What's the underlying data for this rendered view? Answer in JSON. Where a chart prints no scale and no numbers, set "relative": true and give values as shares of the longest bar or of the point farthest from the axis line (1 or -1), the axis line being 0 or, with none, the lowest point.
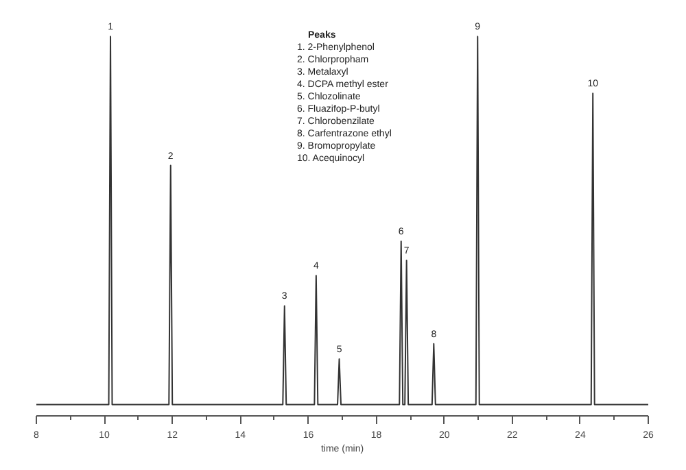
{
  "chart_data": {
    "type": "line",
    "relative": true,
    "xlabel": "time (min)",
    "xlim": [
      8,
      26
    ],
    "xticks": [
      8,
      10,
      12,
      14,
      16,
      18,
      20,
      22,
      24,
      26
    ],
    "grid": false,
    "marker": "none",
    "line_style": "solid",
    "series": [
      {
        "color": "#333333",
        "x": [
          8,
          10.13,
          10.18,
          10.23,
          11.9,
          11.95,
          12.0,
          15.25,
          15.3,
          15.35,
          16.18,
          16.23,
          16.28,
          16.86,
          16.91,
          16.96,
          18.68,
          18.73,
          18.78,
          18.84,
          18.89,
          18.94,
          19.64,
          19.69,
          19.74,
          20.93,
          20.98,
          21.03,
          24.32,
          24.37,
          24.42,
          26
        ],
        "values": [
          0.03,
          0.03,
          1.0,
          0.03,
          0.03,
          0.66,
          0.03,
          0.03,
          0.29,
          0.03,
          0.03,
          0.37,
          0.03,
          0.03,
          0.15,
          0.03,
          0.03,
          0.46,
          0.03,
          0.03,
          0.41,
          0.03,
          0.03,
          0.19,
          0.03,
          0.03,
          1.0,
          0.03,
          0.03,
          0.85,
          0.03,
          0.03
        ]
      }
    ],
    "annotations": [
      {
        "text": "1",
        "x": 10.18,
        "y": 1.0
      },
      {
        "text": "2",
        "x": 11.95,
        "y": 0.66
      },
      {
        "text": "3",
        "x": 15.3,
        "y": 0.29
      },
      {
        "text": "4",
        "x": 16.23,
        "y": 0.37
      },
      {
        "text": "5",
        "x": 16.91,
        "y": 0.15
      },
      {
        "text": "6",
        "x": 18.73,
        "y": 0.46
      },
      {
        "text": "7",
        "x": 18.89,
        "y": 0.41
      },
      {
        "text": "8",
        "x": 19.69,
        "y": 0.19
      },
      {
        "text": "9",
        "x": 20.98,
        "y": 1.0
      },
      {
        "text": "10",
        "x": 24.37,
        "y": 0.85
      },
      "Peaks",
      " 1. 2-Phenylphenol",
      " 2. Chlorpropham",
      " 3. Metalaxyl",
      " 4. DCPA methyl ester",
      " 5. Chlozolinate",
      " 6. Fluazifop-P-butyl",
      " 7. Chlorobenzilate",
      " 8. Carfentrazone ethyl",
      " 9. Bromopropylate",
      "10. Acequinocyl"
    ]
  }
}
